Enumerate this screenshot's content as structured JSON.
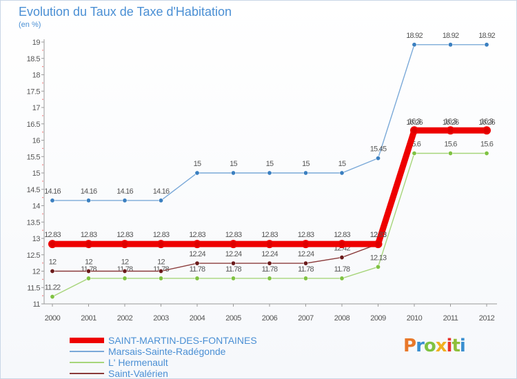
{
  "title": "Evolution du Taux de Taxe d'Habitation",
  "subtitle": "(en %)",
  "logo": "Proxiti",
  "logo_colors": [
    "#e8782a",
    "#3a8fd0",
    "#7fc242",
    "#f0b020",
    "#e8342c",
    "#8fbf3a",
    "#3a8fd0"
  ],
  "chart_data": {
    "type": "line",
    "x": [
      "2000",
      "2001",
      "2002",
      "2003",
      "2004",
      "2005",
      "2006",
      "2007",
      "2008",
      "2009",
      "2010",
      "2011",
      "2012"
    ],
    "ylim": [
      11,
      19
    ],
    "yticks": [
      "11",
      "11.5",
      "12",
      "12.5",
      "13",
      "13.5",
      "14",
      "14.5",
      "15",
      "15.5",
      "16",
      "16.5",
      "17",
      "17.5",
      "18",
      "18.5",
      "19"
    ],
    "grid": false,
    "legend_position": "bottom-left",
    "series": [
      {
        "name": "Marsais-Sainte-Radégonde",
        "color": "#7aa9d8",
        "marker": "#3a7fc0",
        "values": [
          14.16,
          14.16,
          14.16,
          14.16,
          15,
          15,
          15,
          15,
          15,
          15.45,
          18.92,
          18.92,
          18.92
        ],
        "labels": [
          "14.16",
          "14.16",
          "14.16",
          "14.16",
          "15",
          "15",
          "15",
          "15",
          "15",
          "15.45",
          "18.92",
          "18.92",
          "18.92"
        ]
      },
      {
        "name": "L' Hermenault",
        "color": "#a6d57a",
        "marker": "#7fc242",
        "values": [
          11.22,
          11.78,
          11.78,
          11.78,
          11.78,
          11.78,
          11.78,
          11.78,
          11.78,
          12.13,
          15.6,
          15.6,
          15.6
        ],
        "labels": [
          "11.22",
          "11.78",
          "11.78",
          "11.78",
          "11.78",
          "11.78",
          "11.78",
          "11.78",
          "11.78",
          "12.13",
          "15.6",
          "15.6",
          "15.6"
        ]
      },
      {
        "name": "Saint-Valérien",
        "color": "#8a3a3a",
        "marker": "#6a1a1a",
        "values": [
          12,
          12,
          12,
          12,
          12.24,
          12.24,
          12.24,
          12.24,
          12.42,
          12.83,
          16.26,
          16.26,
          16.26
        ],
        "labels": [
          "12",
          "12",
          "12",
          "12",
          "12.24",
          "12.24",
          "12.24",
          "12.24",
          "12.42",
          "12.83",
          "16.26",
          "16.26",
          "16.26"
        ]
      },
      {
        "name": "SAINT-MARTIN-DES-FONTAINES",
        "color": "#ee0000",
        "marker": "#dd0000",
        "thick": true,
        "values": [
          12.83,
          12.83,
          12.83,
          12.83,
          12.83,
          12.83,
          12.83,
          12.83,
          12.83,
          12.83,
          16.3,
          16.3,
          16.3
        ],
        "labels": [
          "12.83",
          "12.83",
          "12.83",
          "12.83",
          "12.83",
          "12.83",
          "12.83",
          "12.83",
          "12.83",
          "12.83",
          "16.3",
          "16.3",
          "16.3"
        ]
      }
    ],
    "legend": [
      {
        "name": "SAINT-MARTIN-DES-FONTAINES",
        "color": "#ee0000",
        "thick": true
      },
      {
        "name": "Marsais-Sainte-Radégonde",
        "color": "#7aa9d8"
      },
      {
        "name": "L' Hermenault",
        "color": "#a6d57a"
      },
      {
        "name": "Saint-Valérien",
        "color": "#8a3a3a"
      }
    ]
  }
}
